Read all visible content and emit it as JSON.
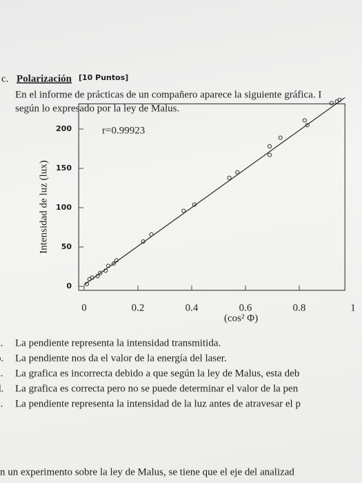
{
  "header": {
    "number": "c.",
    "title": "Polarización",
    "points": "[10 Puntos]",
    "lines": [
      "En el informe de prácticas de un compañero aparece la siguiente gráfica. I",
      "según lo expresado por la ley de Malus."
    ]
  },
  "chart_data": {
    "type": "scatter",
    "ylabel": "Intensidad de luz (lux)",
    "xlabel": "(cos² Φ)",
    "annotation": "r=0.99923",
    "x": [
      0.01,
      0.02,
      0.03,
      0.05,
      0.06,
      0.08,
      0.09,
      0.11,
      0.12,
      0.22,
      0.25,
      0.37,
      0.41,
      0.54,
      0.57,
      0.69,
      0.69,
      0.73,
      0.83,
      0.82,
      0.92,
      0.94,
      0.95
    ],
    "values": [
      3,
      9,
      11,
      13,
      17,
      20,
      26,
      29,
      33,
      57,
      66,
      96,
      104,
      138,
      145,
      178,
      167,
      189,
      205,
      211,
      233,
      235,
      237
    ],
    "fit_line": {
      "x": [
        0,
        0.97
      ],
      "y": [
        2,
        240
      ]
    },
    "color": "#333333",
    "xlim": [
      -0.02,
      0.97
    ],
    "ylim": [
      -5,
      232
    ],
    "xticks": [
      0,
      0.2,
      0.4,
      0.6,
      0.8,
      1
    ],
    "yticks": [
      0,
      50,
      100,
      150,
      200
    ],
    "grid": false
  },
  "options": [
    {
      "letter": "a.",
      "text": "La pendiente representa la intensidad transmitida."
    },
    {
      "letter": "b.",
      "text": "La pendiente nos da el valor de la energía del laser."
    },
    {
      "letter": "c.",
      "text": "La grafica es incorrecta debido a que según la ley de Malus, esta deb"
    },
    {
      "letter": "d.",
      "text": "La grafica es correcta pero no se puede determinar el valor de la pen"
    },
    {
      "letter": "e.",
      "text": "La pendiente representa la intensidad de la luz antes de atravesar el p"
    }
  ],
  "footer": "n un experimento sobre la ley de Malus, se tiene que el eje del analizad"
}
